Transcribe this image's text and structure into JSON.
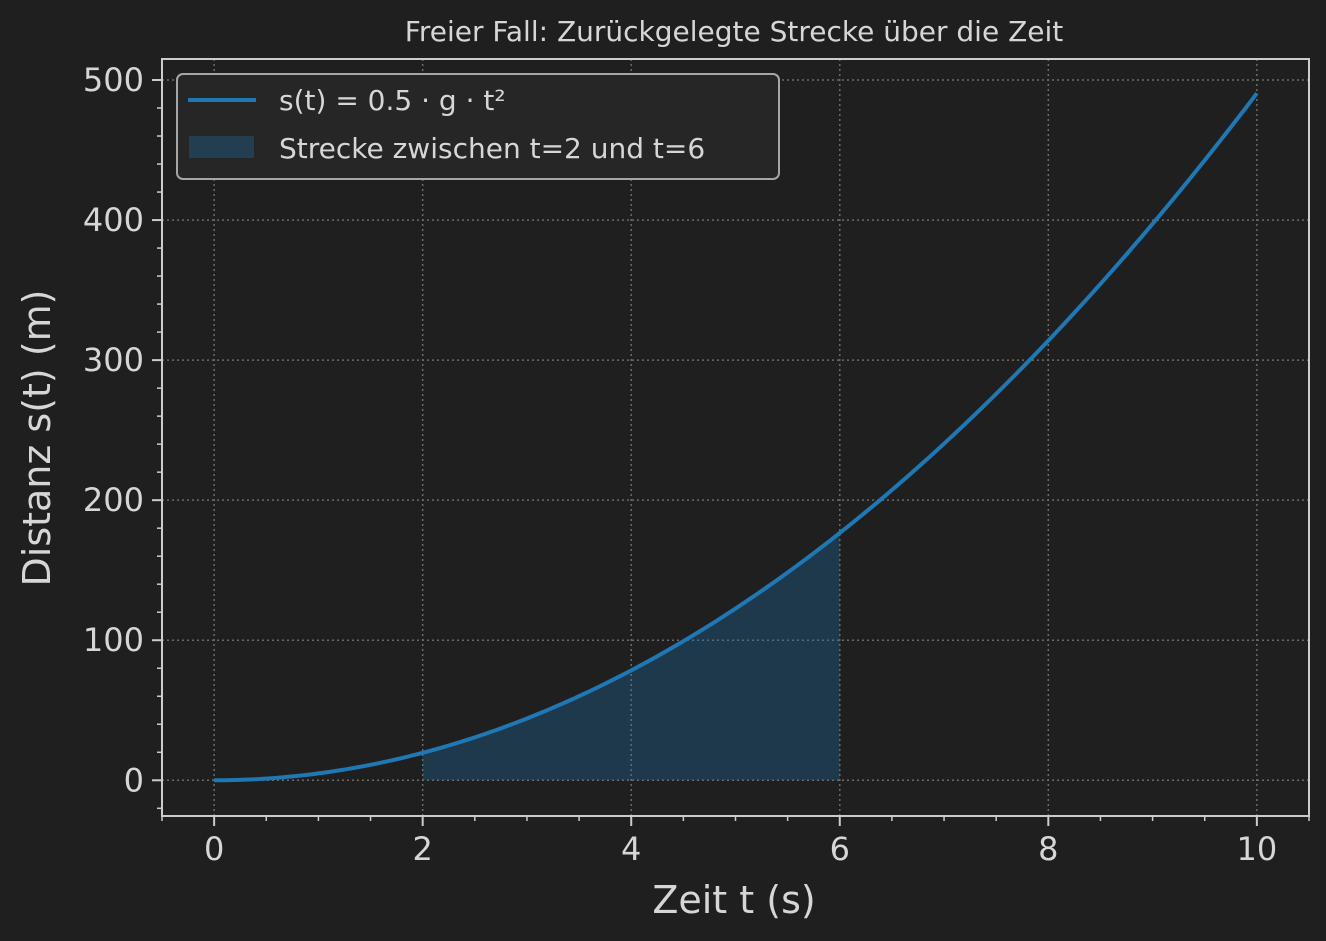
{
  "chart_data": {
    "type": "line",
    "title": "Freier Fall: Zurückgelegte Strecke über die Zeit",
    "xlabel": "Zeit t (s)",
    "ylabel": "Distanz s(t) (m)",
    "xlim": [
      -0.5,
      10.5
    ],
    "ylim": [
      -25.5,
      515
    ],
    "x_ticks": [
      0,
      2,
      4,
      6,
      8,
      10
    ],
    "x_tick_labels": [
      "0",
      "2",
      "4",
      "6",
      "8",
      "10"
    ],
    "y_ticks": [
      0,
      100,
      200,
      300,
      400,
      500
    ],
    "y_tick_labels": [
      "0",
      "100",
      "200",
      "300",
      "400",
      "500"
    ],
    "grid": true,
    "legend_position": "upper-left",
    "series": [
      {
        "name": "s(t) = 0.5 · g · t²",
        "color": "#1f77b4",
        "formula": "s(t) = 0.5 * 9.81 * t^2",
        "x": [
          0,
          0.5,
          1,
          1.5,
          2,
          2.5,
          3,
          3.5,
          4,
          4.5,
          5,
          5.5,
          6,
          6.5,
          7,
          7.5,
          8,
          8.5,
          9,
          9.5,
          10
        ],
        "y": [
          0,
          1.23,
          4.91,
          11.04,
          19.62,
          30.66,
          44.15,
          60.09,
          78.48,
          99.33,
          122.63,
          148.38,
          176.58,
          207.24,
          240.35,
          275.91,
          313.92,
          354.39,
          397.31,
          442.68,
          490.5
        ]
      }
    ],
    "fill_area": {
      "name": "Strecke zwischen t=2 und t=6",
      "x_start": 2,
      "x_end": 6,
      "color": "#1f77b4",
      "opacity": 0.3
    }
  },
  "colors": {
    "background": "#1f1f1f",
    "axes_face": "#1f1f1f",
    "text": "#d6d6d6",
    "spine": "#cccccc",
    "grid": "#6b6b6b",
    "line": "#1f77b4"
  }
}
